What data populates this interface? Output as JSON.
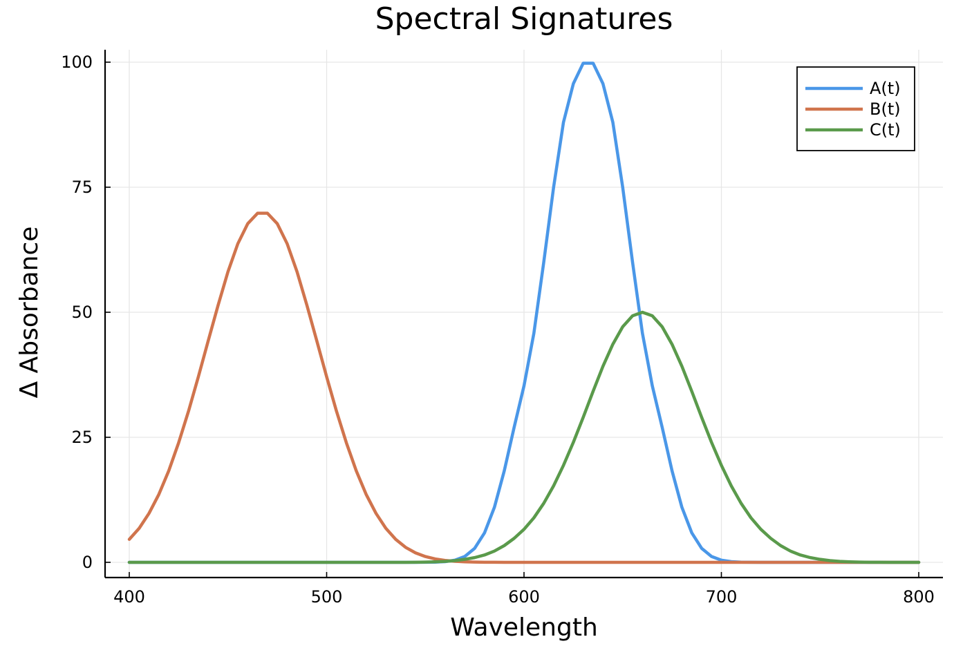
{
  "chart_data": {
    "type": "line",
    "title": "Spectral Signatures",
    "xlabel": "Wavelength",
    "ylabel": "Δ Absorbance",
    "xlim": [
      400,
      800
    ],
    "ylim": [
      0,
      100
    ],
    "xticks": [
      400,
      500,
      600,
      700,
      800
    ],
    "xtick_labels": [
      "400",
      "500",
      "600",
      "700",
      "800"
    ],
    "yticks": [
      0,
      25,
      50,
      75,
      100
    ],
    "ytick_labels": [
      "0",
      "25",
      "50",
      "75",
      "100"
    ],
    "grid": true,
    "legend_position": "top-right",
    "x": [
      400,
      405,
      410,
      415,
      420,
      425,
      430,
      435,
      440,
      445,
      450,
      455,
      460,
      465,
      470,
      475,
      480,
      485,
      490,
      495,
      500,
      505,
      510,
      515,
      520,
      525,
      530,
      535,
      540,
      545,
      550,
      555,
      560,
      565,
      570,
      575,
      580,
      585,
      590,
      595,
      600,
      605,
      610,
      615,
      620,
      625,
      630,
      635,
      640,
      645,
      650,
      655,
      660,
      665,
      670,
      675,
      680,
      685,
      690,
      695,
      700,
      705,
      710,
      715,
      720,
      725,
      730,
      735,
      740,
      745,
      750,
      755,
      760,
      765,
      770,
      775,
      780,
      785,
      790,
      795,
      800
    ],
    "series": [
      {
        "name": "A(t)",
        "color": "#4a97e8",
        "values": [
          0,
          0,
          0,
          0,
          0,
          0,
          0,
          0,
          0,
          0,
          0,
          0,
          0,
          0,
          0,
          0,
          0,
          0,
          0,
          0,
          0,
          0,
          0,
          0,
          0,
          0,
          0,
          0,
          0,
          0,
          0.01,
          0.04,
          0.14,
          0.43,
          1.17,
          2.8,
          5.9,
          11.0,
          18.3,
          27.0,
          35.3,
          45.8,
          60.0,
          75.0,
          88.0,
          95.7,
          99.8,
          99.8,
          95.7,
          88.0,
          75.0,
          60.0,
          45.8,
          35.3,
          27.0,
          18.3,
          11.0,
          5.9,
          2.8,
          1.17,
          0.43,
          0.14,
          0.04,
          0.01,
          0,
          0,
          0,
          0,
          0,
          0,
          0,
          0,
          0,
          0,
          0,
          0,
          0,
          0,
          0,
          0,
          0
        ]
      },
      {
        "name": "B(t)",
        "color": "#d0744d",
        "values": [
          4.6,
          6.8,
          9.8,
          13.6,
          18.3,
          23.9,
          30.2,
          37.1,
          44.3,
          51.4,
          58.1,
          63.7,
          67.7,
          69.8,
          69.8,
          67.7,
          63.7,
          58.1,
          51.4,
          44.3,
          37.1,
          30.2,
          23.9,
          18.3,
          13.6,
          9.8,
          6.8,
          4.6,
          3.0,
          1.9,
          1.16,
          0.68,
          0.38,
          0.21,
          0.11,
          0.05,
          0.02,
          0.01,
          0,
          0,
          0,
          0,
          0,
          0,
          0,
          0,
          0,
          0,
          0,
          0,
          0,
          0,
          0,
          0,
          0,
          0,
          0,
          0,
          0,
          0,
          0,
          0,
          0,
          0,
          0,
          0,
          0,
          0,
          0,
          0,
          0,
          0,
          0,
          0,
          0,
          0,
          0,
          0,
          0,
          0,
          0
        ]
      },
      {
        "name": "C(t)",
        "color": "#5a9a4b",
        "values": [
          0,
          0,
          0,
          0,
          0,
          0,
          0,
          0,
          0,
          0,
          0,
          0,
          0,
          0,
          0,
          0,
          0,
          0,
          0,
          0,
          0,
          0,
          0,
          0,
          0,
          0,
          0,
          0,
          0,
          0.02,
          0.05,
          0.1,
          0.19,
          0.35,
          0.6,
          0.95,
          1.47,
          2.25,
          3.35,
          4.8,
          6.6,
          8.9,
          11.8,
          15.3,
          19.4,
          24.0,
          29.0,
          34.2,
          39.2,
          43.6,
          47.1,
          49.3,
          50.0,
          49.3,
          47.1,
          43.6,
          39.2,
          34.2,
          29.0,
          24.0,
          19.4,
          15.3,
          11.8,
          8.9,
          6.6,
          4.8,
          3.35,
          2.25,
          1.47,
          0.95,
          0.6,
          0.35,
          0.19,
          0.1,
          0.05,
          0.02,
          0.01,
          0,
          0,
          0,
          0
        ]
      }
    ]
  }
}
